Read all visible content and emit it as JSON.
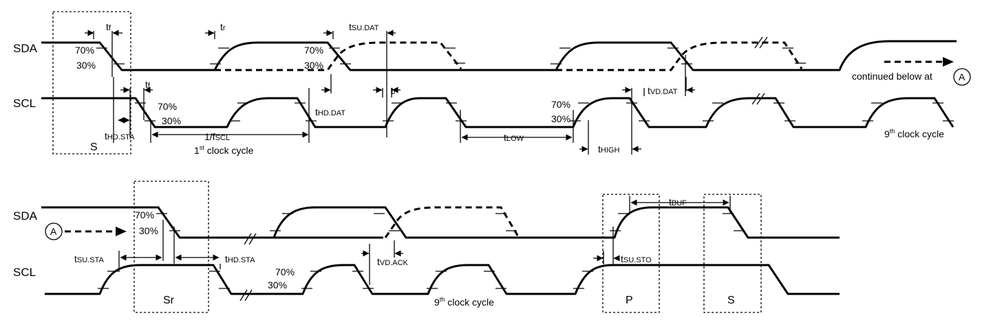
{
  "signals": {
    "sda": "SDA",
    "scl": "SCL"
  },
  "levels": {
    "high": "70%",
    "low": "30%"
  },
  "timing": {
    "tf": {
      "t": "t",
      "s": "f"
    },
    "tr": {
      "t": "t",
      "s": "r"
    },
    "tsu_dat": {
      "t": "t",
      "s": "SU.DAT"
    },
    "thd_dat": {
      "t": "t",
      "s": "HD.DAT"
    },
    "thd_sta": {
      "t": "t",
      "s": "HD.STA"
    },
    "tlow": {
      "t": "t",
      "s": "LOW"
    },
    "thigh": {
      "t": "t",
      "s": "HIGH"
    },
    "tvd_dat": {
      "t": "t",
      "s": "VD.DAT"
    },
    "tsu_sta": {
      "t": "t",
      "s": "SU.STA"
    },
    "tvd_ack": {
      "t": "t",
      "s": "VD.ACK"
    },
    "tsu_sto": {
      "t": "t",
      "s": "SU.STO"
    },
    "tbuf": {
      "t": "t",
      "s": "BUF"
    },
    "fscl": {
      "t": "1/f",
      "s": "SCL"
    }
  },
  "clock": {
    "first_num": "1",
    "first_sup": "st",
    "ninth_num": "9",
    "ninth_sup": "th",
    "cycle_text": " clock cycle"
  },
  "conditions": {
    "start": "S",
    "repeated_start": "Sr",
    "stop": "P"
  },
  "continuation": {
    "text": "continued below at",
    "marker": "A"
  }
}
